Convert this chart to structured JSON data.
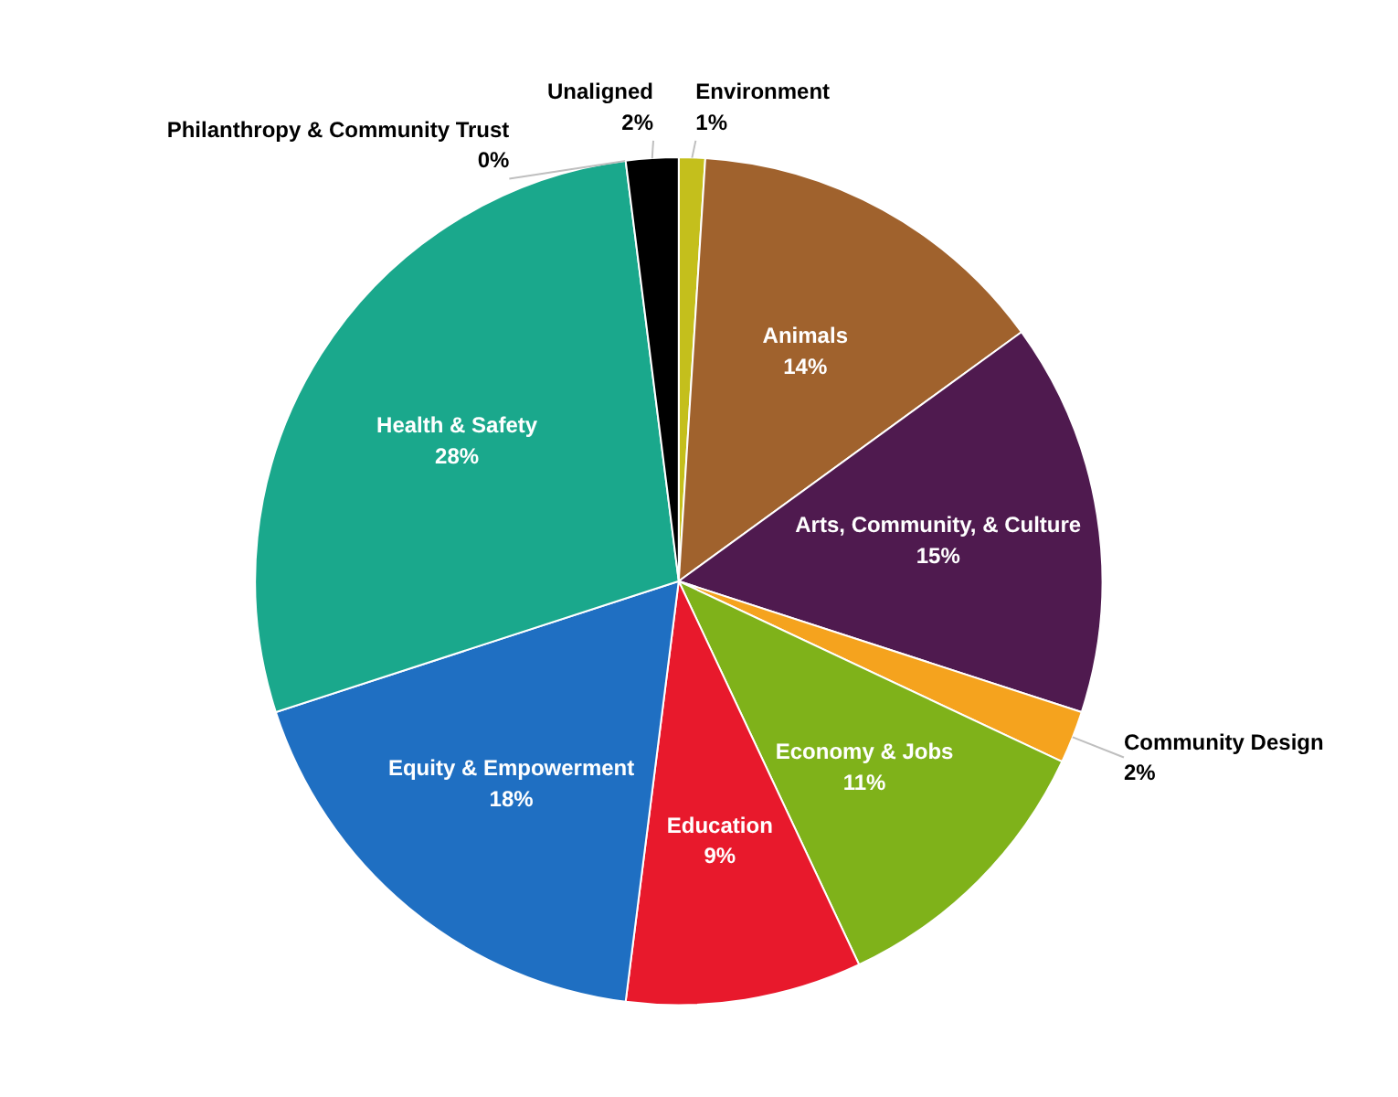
{
  "chart_data": {
    "type": "pie",
    "categories": [
      "Environment",
      "Animals",
      "Arts, Community, & Culture",
      "Community Design",
      "Economy & Jobs",
      "Education",
      "Equity & Empowerment",
      "Health & Safety",
      "Philanthropy & Community Trust",
      "Unaligned"
    ],
    "values": [
      1,
      14,
      15,
      2,
      11,
      9,
      18,
      28,
      0,
      2
    ],
    "value_labels": [
      "1%",
      "14%",
      "15%",
      "2%",
      "11%",
      "9%",
      "18%",
      "28%",
      "0%",
      "2%"
    ],
    "colors": [
      "#c4bf1c",
      "#a0622d",
      "#4f1a4f",
      "#f5a31e",
      "#7fb21a",
      "#e8192c",
      "#1f6fc2",
      "#1aa88c",
      "#c0145a",
      "#000000"
    ],
    "legend": false
  }
}
